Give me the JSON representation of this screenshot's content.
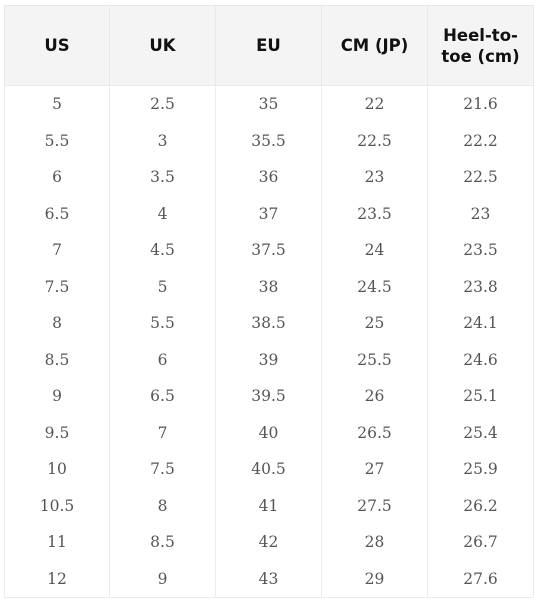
{
  "size_chart": {
    "headers": [
      "US",
      "UK",
      "EU",
      "CM (JP)",
      "Heel-to-toe (cm)"
    ],
    "rows": [
      [
        "5",
        "2.5",
        "35",
        "22",
        "21.6"
      ],
      [
        "5.5",
        "3",
        "35.5",
        "22.5",
        "22.2"
      ],
      [
        "6",
        "3.5",
        "36",
        "23",
        "22.5"
      ],
      [
        "6.5",
        "4",
        "37",
        "23.5",
        "23"
      ],
      [
        "7",
        "4.5",
        "37.5",
        "24",
        "23.5"
      ],
      [
        "7.5",
        "5",
        "38",
        "24.5",
        "23.8"
      ],
      [
        "8",
        "5.5",
        "38.5",
        "25",
        "24.1"
      ],
      [
        "8.5",
        "6",
        "39",
        "25.5",
        "24.6"
      ],
      [
        "9",
        "6.5",
        "39.5",
        "26",
        "25.1"
      ],
      [
        "9.5",
        "7",
        "40",
        "26.5",
        "25.4"
      ],
      [
        "10",
        "7.5",
        "40.5",
        "27",
        "25.9"
      ],
      [
        "10.5",
        "8",
        "41",
        "27.5",
        "26.2"
      ],
      [
        "11",
        "8.5",
        "42",
        "28",
        "26.7"
      ],
      [
        "12",
        "9",
        "43",
        "29",
        "27.6"
      ]
    ]
  },
  "colors": {
    "header_background": "#f4f4f4",
    "header_text": "#111111",
    "cell_text": "#555555",
    "border": "#ececec"
  }
}
